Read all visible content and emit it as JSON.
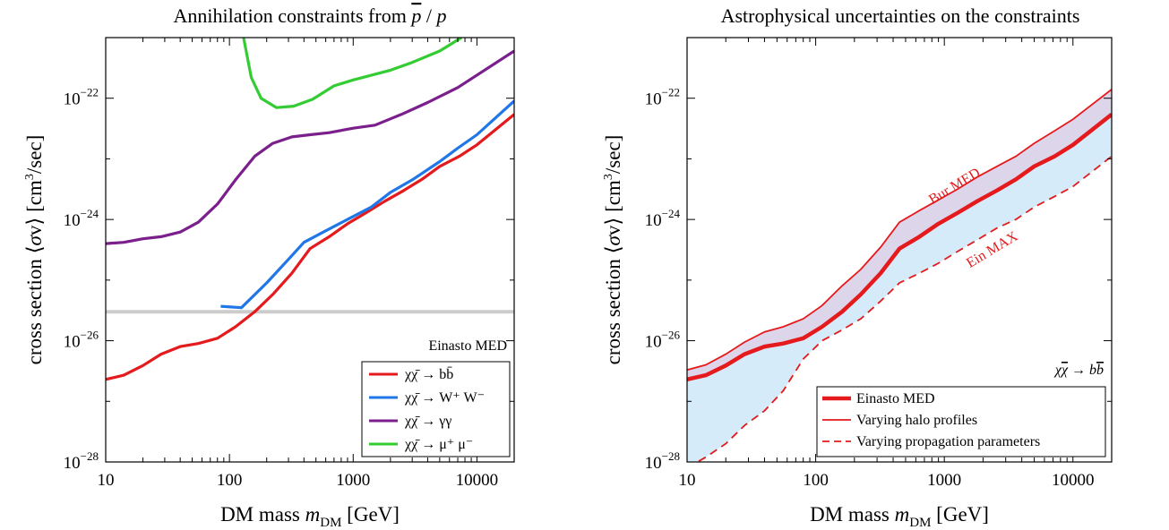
{
  "chart_data": [
    {
      "type": "line",
      "title": "Annihilation constraints from p̄ / p",
      "xlabel": "DM mass m_DM [GeV]",
      "ylabel": "cross section ⟨σv⟩ [cm³/sec]",
      "xscale": "log",
      "yscale": "log",
      "xlim": [
        10,
        20000
      ],
      "ylim": [
        1e-28,
        1e-21
      ],
      "xticks": [
        10,
        100,
        1000,
        10000
      ],
      "xtick_labels": [
        "10",
        "100",
        "1000",
        "10000"
      ],
      "yticks": [
        1e-28,
        1e-26,
        1e-24,
        1e-22
      ],
      "ytick_labels": [
        "10",
        "10",
        "10",
        "10"
      ],
      "ytick_exponents": [
        "−28",
        "−26",
        "−24",
        "−22"
      ],
      "annotation": "Einasto MED",
      "legend_position": "bottom-right",
      "reference_line": {
        "y": 3e-26,
        "color": "#cccccc"
      },
      "series": [
        {
          "name": "χχ̄ → bb̄",
          "color": "#e41a1c",
          "x": [
            10,
            14,
            20,
            28,
            40,
            56,
            80,
            112,
            160,
            224,
            320,
            448,
            640,
            900,
            1280,
            1800,
            2560,
            3600,
            5000,
            7200,
            10000,
            20000
          ],
          "y": [
            2.3e-27,
            2.7e-27,
            3.9e-27,
            6e-27,
            8e-27,
            9e-27,
            1.1e-26,
            1.7e-26,
            3e-26,
            5.8e-26,
            1.3e-25,
            3.3e-25,
            5.2e-25,
            8.5e-25,
            1.3e-24,
            2e-24,
            3e-24,
            4.6e-24,
            7.5e-24,
            1.1e-23,
            1.7e-23,
            5.4e-23
          ]
        },
        {
          "name": "χχ̄ → W⁺ W⁻",
          "color": "#1f77e8",
          "x": [
            85,
            125,
            200,
            300,
            400,
            600,
            900,
            1400,
            2000,
            3000,
            5000,
            7000,
            10000,
            20000
          ],
          "y": [
            3.7e-26,
            3.5e-26,
            9e-26,
            2.2e-25,
            4.2e-25,
            6.5e-25,
            1e-24,
            1.6e-24,
            2.8e-24,
            4.5e-24,
            9e-24,
            1.5e-23,
            2.5e-23,
            9e-23
          ]
        },
        {
          "name": "χχ̄ → γγ",
          "color": "#7a1f8c",
          "x": [
            10,
            14,
            20,
            28,
            40,
            56,
            80,
            112,
            160,
            224,
            320,
            448,
            640,
            1000,
            1500,
            2500,
            4000,
            7000,
            20000
          ],
          "y": [
            4e-25,
            4.2e-25,
            4.8e-25,
            5.2e-25,
            6.2e-25,
            9e-25,
            1.8e-24,
            4.5e-24,
            1.1e-23,
            1.8e-23,
            2.3e-23,
            2.5e-23,
            2.7e-23,
            3.2e-23,
            3.6e-23,
            5.5e-23,
            8.5e-23,
            1.5e-22,
            6e-22
          ]
        },
        {
          "name": "χχ̄ → μ⁺ μ⁻",
          "color": "#33cc33",
          "x": [
            130,
            150,
            180,
            240,
            330,
            470,
            700,
            1000,
            2000,
            3000,
            5000,
            7500
          ],
          "y": [
            1e-21,
            2.2e-22,
            1e-22,
            7e-23,
            7.4e-23,
            9.6e-23,
            1.6e-22,
            2e-22,
            2.9e-22,
            3.9e-22,
            6e-22,
            1e-21
          ]
        }
      ]
    },
    {
      "type": "area",
      "title": "Astrophysical uncertainties on the constraints",
      "xlabel": "DM mass m_DM [GeV]",
      "ylabel": "cross section ⟨σv⟩ [cm³/sec]",
      "xscale": "log",
      "yscale": "log",
      "xlim": [
        10,
        20000
      ],
      "ylim": [
        1e-28,
        1e-21
      ],
      "xticks": [
        10,
        100,
        1000,
        10000
      ],
      "xtick_labels": [
        "10",
        "100",
        "1000",
        "10000"
      ],
      "yticks": [
        1e-28,
        1e-26,
        1e-24,
        1e-22
      ],
      "ytick_labels": [
        "10",
        "10",
        "10",
        "10"
      ],
      "ytick_exponents": [
        "−28",
        "−26",
        "−24",
        "−22"
      ],
      "channel_label": "χχ̄ → bb̄",
      "curve_labels": [
        "Bur MED",
        "Ein MAX"
      ],
      "legend_position": "bottom-right",
      "band_colors": {
        "halo": "#ddd5ea",
        "propagation": "#d6ebfa"
      },
      "x": [
        10,
        14,
        20,
        28,
        40,
        56,
        80,
        112,
        160,
        224,
        320,
        448,
        640,
        900,
        1280,
        1800,
        2560,
        3600,
        5000,
        7200,
        10000,
        20000
      ],
      "series": [
        {
          "name": "Einasto MED",
          "style": "thick",
          "color": "#e41a1c",
          "y": [
            2.3e-27,
            2.7e-27,
            3.9e-27,
            6e-27,
            8e-27,
            9e-27,
            1.1e-26,
            1.7e-26,
            3e-26,
            5.8e-26,
            1.3e-25,
            3.3e-25,
            5.2e-25,
            8.5e-25,
            1.3e-24,
            2e-24,
            3e-24,
            4.6e-24,
            7.5e-24,
            1.1e-23,
            1.7e-23,
            5.4e-23
          ]
        },
        {
          "name": "Varying halo profiles",
          "style": "thin",
          "color": "#e41a1c",
          "y": [
            3.3e-27,
            4e-27,
            6e-27,
            9.5e-27,
            1.4e-26,
            1.7e-26,
            2.3e-26,
            3.8e-26,
            8e-26,
            1.5e-25,
            3.5e-25,
            9e-25,
            1.4e-24,
            2.1e-24,
            3.2e-24,
            5e-24,
            7.5e-24,
            1.1e-23,
            1.8e-23,
            2.9e-23,
            4.5e-23,
            1.4e-22
          ]
        },
        {
          "name": "Varying propagation parameters",
          "style": "dashed",
          "color": "#e41a1c",
          "y": [
            8e-29,
            1.2e-28,
            2e-28,
            4e-28,
            7e-28,
            1.5e-27,
            5e-27,
            1e-26,
            1.5e-26,
            2.3e-26,
            4.5e-26,
            9e-26,
            1.3e-25,
            1.9e-25,
            3e-25,
            4.6e-25,
            7.2e-25,
            1e-24,
            1.6e-24,
            2.4e-24,
            3.5e-24,
            1.1e-23
          ]
        }
      ]
    }
  ]
}
